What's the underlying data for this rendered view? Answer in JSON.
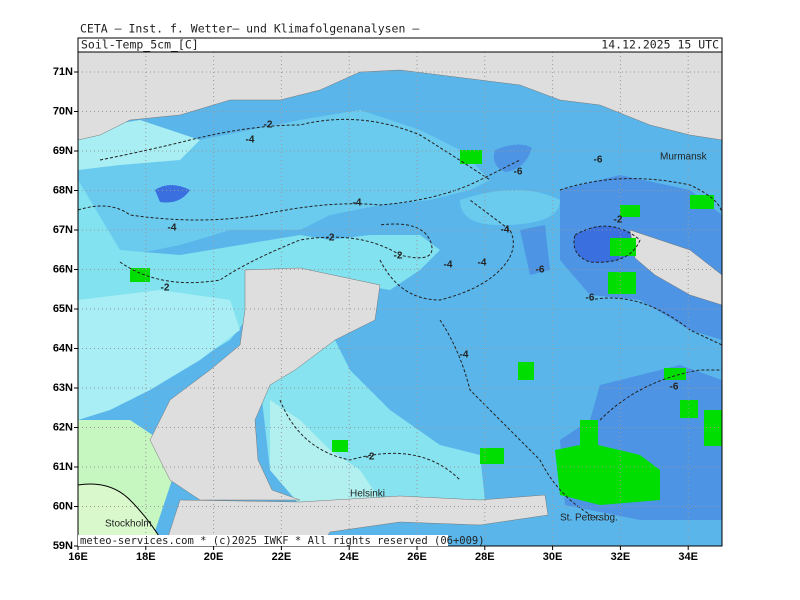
{
  "header": {
    "institute": "CETA — Inst. f. Wetter— und Klimafolgenanalysen —",
    "variable": "Soil-Temp_5cm_[C]",
    "datetime": "14.12.2025 15 UTC"
  },
  "latitude_labels": [
    "71N",
    "70N",
    "69N",
    "68N",
    "67N",
    "66N",
    "65N",
    "64N",
    "63N",
    "62N",
    "61N",
    "60N",
    "59N"
  ],
  "longitude_labels": [
    "16E",
    "18E",
    "20E",
    "22E",
    "24E",
    "26E",
    "28E",
    "30E",
    "32E",
    "34E"
  ],
  "places": [
    "Murmansk",
    "Helsinki",
    "Stockholm",
    "St. Petersbg."
  ],
  "contour_labels": [
    "-2",
    "-4",
    "-2",
    "-4",
    "-6",
    "-6",
    "-4",
    "-2",
    "-2",
    "-4",
    "-4",
    "-4",
    "-6",
    "-6",
    "-4",
    "-2",
    "-6",
    "-2"
  ],
  "footer": "meteo-services.com * (c)2025 IWKF * All rights reserved (06+009)"
}
